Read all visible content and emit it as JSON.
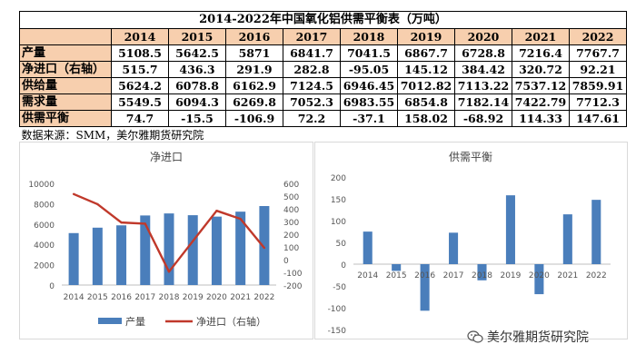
{
  "table": {
    "title": "2014-2022年中国氧化铝供需平衡表（万吨）",
    "corner": "",
    "years": [
      "2014",
      "2015",
      "2016",
      "2017",
      "2018",
      "2019",
      "2020",
      "2021",
      "2022"
    ],
    "rows": [
      {
        "label": "产量",
        "values": [
          "5108.5",
          "5642.5",
          "5871",
          "6841.7",
          "7041.5",
          "6867.7",
          "6728.8",
          "7216.4",
          "7767.7"
        ]
      },
      {
        "label": "净进口（右轴）",
        "values": [
          "515.7",
          "436.3",
          "291.9",
          "282.8",
          "-95.05",
          "145.12",
          "384.42",
          "320.72",
          "92.21"
        ]
      },
      {
        "label": "供给量",
        "values": [
          "5624.2",
          "6078.8",
          "6162.9",
          "7124.5",
          "6946.45",
          "7012.82",
          "7113.22",
          "7537.12",
          "7859.91"
        ]
      },
      {
        "label": "需求量",
        "values": [
          "5549.5",
          "6094.3",
          "6269.8",
          "7052.3",
          "6983.55",
          "6854.8",
          "7182.14",
          "7422.79",
          "7712.3"
        ]
      },
      {
        "label": "供需平衡",
        "values": [
          "74.7",
          "-15.5",
          "-106.9",
          "72.2",
          "-37.1",
          "158.02",
          "-68.92",
          "114.33",
          "147.61"
        ]
      }
    ],
    "source": "数据来源：SMM，美尔雅期货研究院"
  },
  "chart_data": [
    {
      "type": "bar",
      "title": "净进口",
      "categories": [
        "2014",
        "2015",
        "2016",
        "2017",
        "2018",
        "2019",
        "2020",
        "2021",
        "2022"
      ],
      "series": [
        {
          "name": "产量",
          "type": "bar",
          "axis": "left",
          "color": "#4a7ebb",
          "values": [
            5108.5,
            5642.5,
            5871,
            6841.7,
            7041.5,
            6867.7,
            6728.8,
            7216.4,
            7767.7
          ]
        },
        {
          "name": "净进口（右轴）",
          "type": "line",
          "axis": "right",
          "color": "#c0392b",
          "values": [
            515.7,
            436.3,
            291.9,
            282.8,
            -95.05,
            145.12,
            384.42,
            320.72,
            92.21
          ]
        }
      ],
      "ylim": [
        0,
        10000
      ],
      "yticks": [
        "0",
        "2000",
        "4000",
        "6000",
        "8000",
        "10000"
      ],
      "y2lim": [
        -200,
        600
      ],
      "y2ticks": [
        "-200",
        "-100",
        "0",
        "100",
        "200",
        "300",
        "400",
        "500",
        "600"
      ],
      "grid": false,
      "legend": "bottom"
    },
    {
      "type": "bar",
      "title": "供需平衡",
      "categories": [
        "2014",
        "2015",
        "2016",
        "2017",
        "2018",
        "2019",
        "2020",
        "2021",
        "2022"
      ],
      "series": [
        {
          "name": "供需平衡",
          "color": "#4a7ebb",
          "values": [
            74.7,
            -15.5,
            -106.9,
            72.2,
            -37.1,
            158.02,
            -68.92,
            114.33,
            147.61
          ]
        }
      ],
      "ylim": [
        -150,
        200
      ],
      "yticks": [
        "-150",
        "-100",
        "-50",
        "0",
        "50",
        "100",
        "150",
        "200"
      ],
      "grid": false,
      "legend": "none"
    }
  ],
  "watermark": {
    "text": "美尔雅期货研究院",
    "icon": "wechat-icon"
  }
}
